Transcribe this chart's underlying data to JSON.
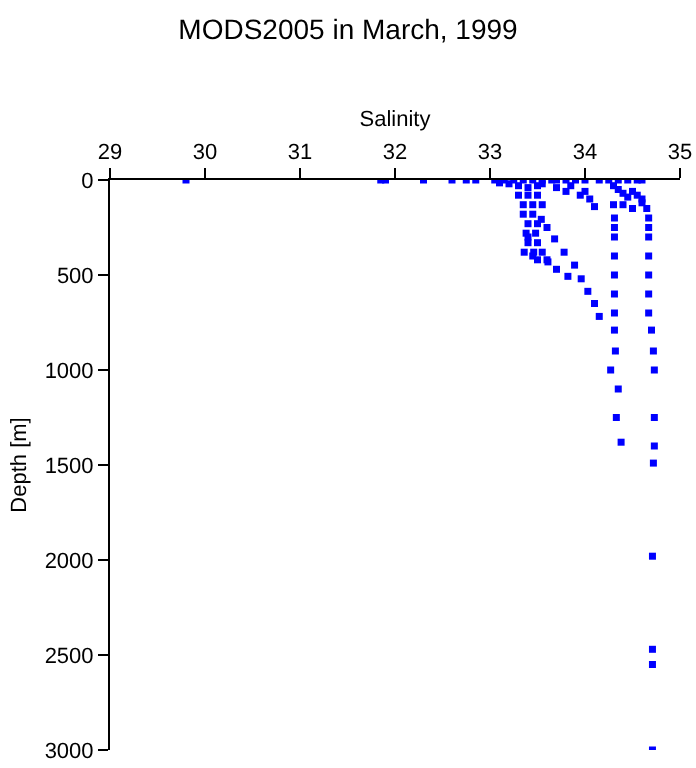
{
  "chart_data": {
    "type": "scatter",
    "title": "MODS2005 in March, 1999",
    "xlabel": "Salinity",
    "ylabel": "Depth [m]",
    "xlim": [
      29,
      35
    ],
    "xticks": [
      29,
      30,
      31,
      32,
      33,
      34,
      35
    ],
    "ylim": [
      3000,
      0
    ],
    "yticks": [
      0,
      500,
      1000,
      1500,
      2000,
      2500,
      3000
    ],
    "grid": false,
    "marker": "square",
    "series": [
      {
        "color": "#0000ff",
        "x": [
          29.8,
          31.85,
          31.9,
          32.3,
          32.6,
          32.75,
          32.85,
          33.05,
          33.15,
          33.25,
          33.35,
          33.45,
          33.55,
          33.65,
          33.7,
          33.8,
          33.9,
          34.0,
          34.15,
          34.25,
          34.35,
          34.45,
          34.55,
          34.6,
          33.1,
          33.2,
          33.3,
          33.4,
          33.5,
          33.55,
          33.3,
          33.4,
          33.5,
          33.35,
          33.45,
          33.55,
          33.35,
          33.45,
          33.4,
          33.5,
          33.38,
          33.48,
          33.4,
          33.5,
          33.36,
          33.46,
          33.4,
          33.45,
          33.5,
          33.55,
          33.6,
          33.61,
          33.7,
          33.82,
          33.54,
          33.6,
          33.68,
          33.78,
          33.89,
          33.96,
          34.03,
          34.1,
          34.15,
          33.7,
          33.8,
          33.85,
          33.95,
          34.0,
          34.05,
          34.1,
          34.3,
          34.35,
          34.4,
          34.45,
          34.5,
          34.55,
          34.6,
          34.3,
          34.4,
          34.5,
          34.6,
          34.65,
          34.31,
          34.31,
          34.31,
          34.31,
          34.31,
          34.31,
          34.31,
          34.31,
          34.32,
          34.27,
          34.35,
          34.33,
          34.38,
          34.67,
          34.67,
          34.67,
          34.67,
          34.67,
          34.67,
          34.67,
          34.7,
          34.72,
          34.73,
          34.73,
          34.73,
          34.72,
          34.71,
          34.71,
          34.71,
          34.71
        ],
        "values": [
          0,
          0,
          0,
          0,
          0,
          0,
          0,
          0,
          0,
          0,
          0,
          0,
          0,
          0,
          0,
          0,
          0,
          0,
          0,
          0,
          0,
          0,
          0,
          0,
          15,
          20,
          30,
          40,
          30,
          20,
          80,
          80,
          80,
          130,
          130,
          130,
          180,
          180,
          230,
          230,
          280,
          280,
          330,
          330,
          380,
          380,
          300,
          400,
          420,
          380,
          420,
          431,
          470,
          507,
          207,
          250,
          310,
          380,
          448,
          520,
          586,
          650,
          718,
          40,
          60,
          30,
          80,
          60,
          100,
          140,
          30,
          50,
          70,
          90,
          60,
          80,
          100,
          130,
          130,
          150,
          120,
          150,
          200,
          250,
          300,
          400,
          500,
          600,
          700,
          790,
          900,
          1000,
          1100,
          1250,
          1380,
          200,
          250,
          300,
          400,
          500,
          600,
          700,
          790,
          900,
          1000,
          1250,
          1400,
          1490,
          1980,
          2470,
          2550,
          3000
        ]
      }
    ]
  }
}
